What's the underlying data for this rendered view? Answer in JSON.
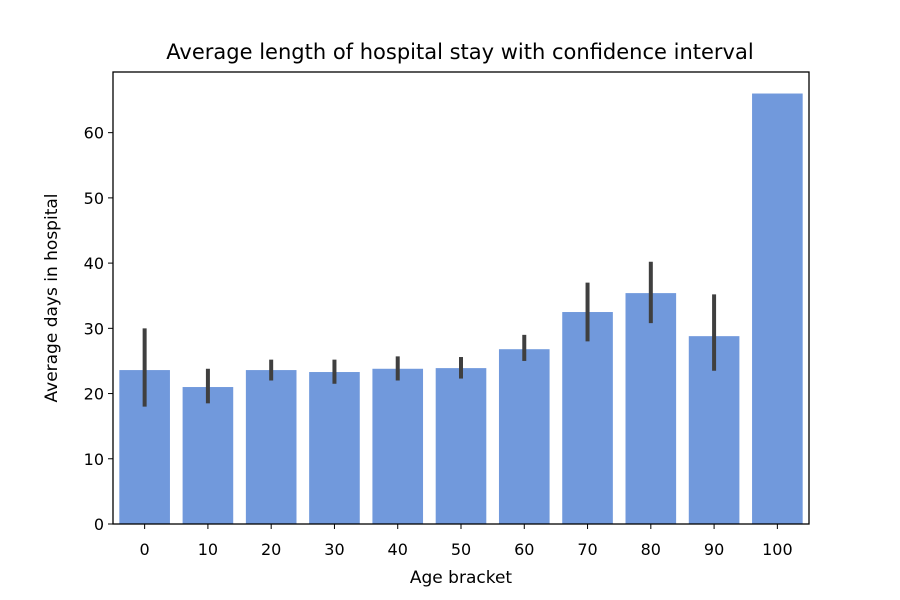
{
  "chart_data": {
    "type": "bar",
    "title": "Average length of hospital stay with confidence interval",
    "xlabel": "Age bracket",
    "ylabel": "Average days in hospital",
    "categories": [
      "0",
      "10",
      "20",
      "30",
      "40",
      "50",
      "60",
      "70",
      "80",
      "90",
      "100"
    ],
    "values": [
      23.6,
      21.0,
      23.6,
      23.3,
      23.8,
      23.9,
      26.8,
      32.5,
      35.4,
      28.8,
      66.0
    ],
    "ci_lower": [
      18.0,
      18.5,
      22.0,
      21.5,
      22.0,
      22.3,
      25.0,
      28.0,
      30.8,
      23.5,
      null
    ],
    "ci_upper": [
      30.0,
      23.8,
      25.2,
      25.2,
      25.7,
      25.6,
      29.0,
      37.0,
      40.2,
      35.2,
      null
    ],
    "ylim": [
      0,
      69.3
    ],
    "yticks": [
      0,
      10,
      20,
      30,
      40,
      50,
      60
    ],
    "grid": false,
    "legend": "none",
    "colors": {
      "bar": "#7199dc",
      "error_bar": "#3f3f3f",
      "axes": "#000000"
    }
  }
}
